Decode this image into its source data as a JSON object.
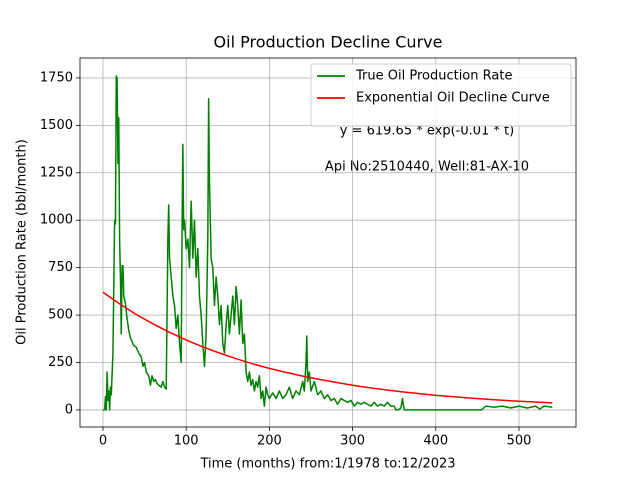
{
  "chart_data": {
    "type": "line",
    "title": "Oil Production Decline Curve",
    "xlabel": "Time (months) from:1/1978 to:12/2023",
    "ylabel": "Oil Production Rate (bbl/month)",
    "annotations": [
      "y = 619.65 * exp(-0.01 * t)",
      "Api No:2510440, Well:81-AX-10"
    ],
    "xlim": [
      -27.6,
      568.5
    ],
    "ylim": [
      -90,
      1855
    ],
    "xticks": [
      0,
      100,
      200,
      300,
      400,
      500
    ],
    "yticks": [
      0,
      250,
      500,
      750,
      1000,
      1250,
      1500,
      1750
    ],
    "grid": true,
    "legend": "upper right",
    "series": [
      {
        "name": "True Oil Production Rate",
        "color": "#008000",
        "x": [
          0,
          2,
          3,
          4,
          5,
          6,
          7,
          8,
          9,
          10,
          12,
          14,
          15,
          16,
          17,
          18,
          19,
          20,
          21,
          22,
          23,
          24,
          25,
          27,
          29,
          31,
          33,
          35,
          37,
          40,
          43,
          46,
          48,
          50,
          52,
          55,
          57,
          59,
          61,
          63,
          65,
          67,
          70,
          72,
          74,
          76,
          77,
          78,
          79,
          80,
          82,
          84,
          86,
          88,
          90,
          92,
          94,
          95,
          96,
          97,
          98,
          100,
          102,
          104,
          106,
          108,
          110,
          112,
          114,
          116,
          118,
          120,
          122,
          124,
          126,
          127,
          128,
          130,
          132,
          134,
          136,
          138,
          140,
          142,
          144,
          146,
          148,
          150,
          152,
          154,
          156,
          158,
          160,
          162,
          164,
          166,
          168,
          170,
          172,
          174,
          176,
          178,
          180,
          182,
          184,
          186,
          188,
          190,
          192,
          194,
          196,
          198,
          200,
          204,
          208,
          212,
          216,
          220,
          224,
          228,
          232,
          236,
          240,
          242,
          244,
          245,
          246,
          248,
          250,
          254,
          258,
          262,
          266,
          270,
          274,
          278,
          282,
          286,
          290,
          294,
          298,
          302,
          306,
          310,
          314,
          318,
          322,
          326,
          330,
          334,
          338,
          342,
          346,
          350,
          352,
          355,
          358,
          360,
          362,
          380,
          400,
          420,
          450,
          455,
          460,
          470,
          480,
          490,
          500,
          510,
          520,
          525,
          530,
          540
        ],
        "values": [
          0,
          0,
          70,
          0,
          200,
          50,
          100,
          0,
          120,
          80,
          300,
          1000,
          980,
          1760,
          1750,
          1300,
          1540,
          900,
          700,
          400,
          760,
          760,
          600,
          560,
          480,
          420,
          380,
          360,
          340,
          330,
          300,
          280,
          230,
          250,
          200,
          180,
          130,
          180,
          150,
          160,
          140,
          130,
          120,
          150,
          120,
          110,
          500,
          900,
          1080,
          800,
          700,
          600,
          550,
          430,
          500,
          350,
          250,
          900,
          1400,
          950,
          1000,
          850,
          900,
          750,
          1100,
          800,
          1000,
          700,
          850,
          600,
          500,
          350,
          230,
          400,
          900,
          1640,
          1200,
          800,
          750,
          550,
          700,
          600,
          450,
          550,
          350,
          300,
          450,
          550,
          400,
          500,
          600,
          450,
          650,
          550,
          400,
          580,
          350,
          400,
          200,
          150,
          200,
          130,
          160,
          100,
          150,
          120,
          180,
          60,
          100,
          20,
          120,
          80,
          60,
          90,
          60,
          100,
          60,
          80,
          120,
          60,
          100,
          80,
          150,
          100,
          250,
          390,
          150,
          200,
          100,
          150,
          80,
          100,
          60,
          80,
          50,
          60,
          30,
          60,
          50,
          40,
          50,
          20,
          40,
          30,
          40,
          30,
          20,
          40,
          20,
          30,
          20,
          40,
          20,
          20,
          0,
          0,
          10,
          60,
          0,
          0,
          0,
          0,
          0,
          0,
          20,
          15,
          20,
          10,
          20,
          10,
          20,
          5,
          20,
          15
        ]
      },
      {
        "name": "Exponential Oil Decline Curve",
        "color": "#ff0000",
        "x": [
          0,
          20,
          40,
          60,
          80,
          100,
          120,
          140,
          160,
          180,
          200,
          220,
          240,
          260,
          280,
          300,
          320,
          340,
          360,
          380,
          400,
          420,
          440,
          460,
          480,
          500,
          520,
          540
        ],
        "values": [
          620,
          559,
          503,
          454,
          409,
          369,
          332,
          300,
          270,
          243,
          219,
          198,
          178,
          161,
          145,
          130,
          117,
          106,
          95,
          86,
          77,
          70,
          63,
          57,
          51,
          46,
          42,
          37
        ]
      }
    ]
  }
}
